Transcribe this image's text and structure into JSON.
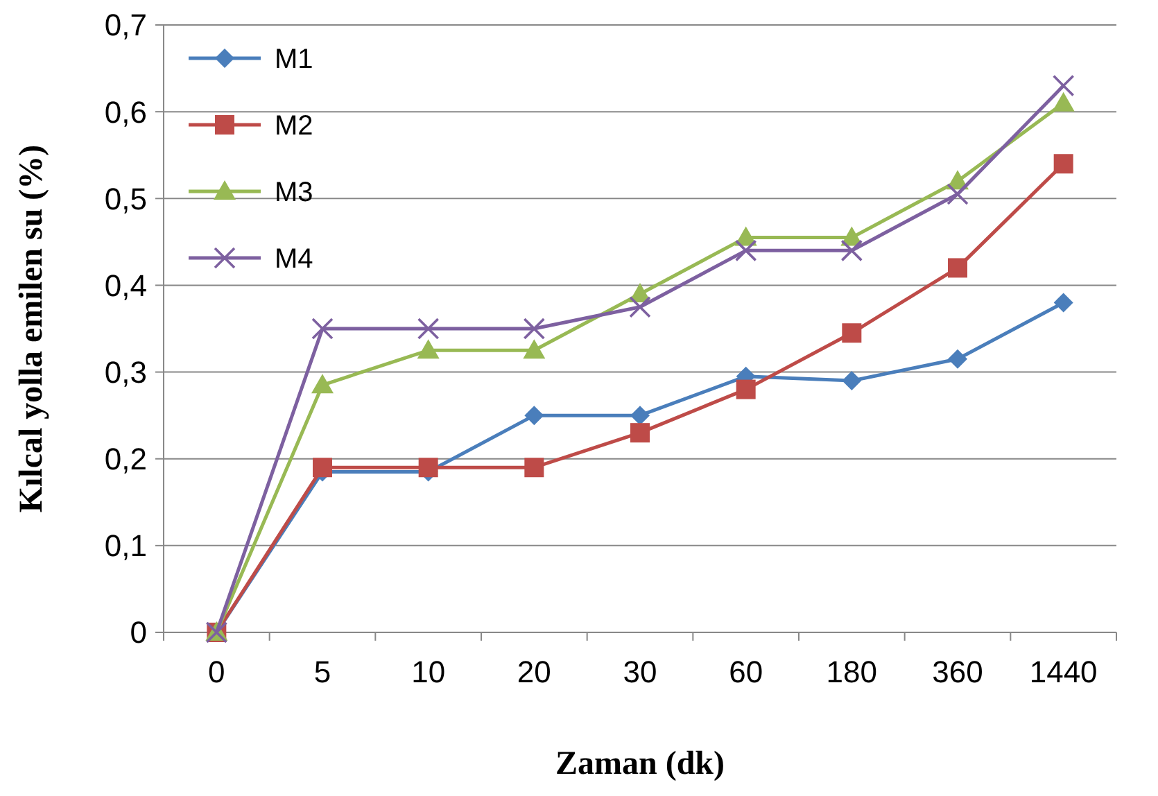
{
  "chart_data": {
    "type": "line",
    "xlabel": "Zaman (dk)",
    "ylabel": "Kılcal yolla emilen su (%)",
    "categories": [
      "0",
      "5",
      "10",
      "20",
      "30",
      "60",
      "180",
      "360",
      "1440"
    ],
    "ylim": [
      0,
      0.7
    ],
    "yticks": [
      {
        "value": 0,
        "label": "0"
      },
      {
        "value": 0.1,
        "label": "0,1"
      },
      {
        "value": 0.2,
        "label": "0,2"
      },
      {
        "value": 0.3,
        "label": "0,3"
      },
      {
        "value": 0.4,
        "label": "0,4"
      },
      {
        "value": 0.5,
        "label": "0,5"
      },
      {
        "value": 0.6,
        "label": "0,6"
      },
      {
        "value": 0.7,
        "label": "0,7"
      }
    ],
    "grid": "y",
    "legend": "top left",
    "line_style": "solid",
    "series": [
      {
        "name": "M1",
        "color": "#4a7ebb",
        "marker": "diamond",
        "values": [
          0,
          0.185,
          0.185,
          0.25,
          0.25,
          0.295,
          0.29,
          0.315,
          0.38
        ]
      },
      {
        "name": "M2",
        "color": "#be4b48",
        "marker": "square",
        "values": [
          0,
          0.19,
          0.19,
          0.19,
          0.23,
          0.28,
          0.345,
          0.42,
          0.54
        ]
      },
      {
        "name": "M3",
        "color": "#98b954",
        "marker": "triangle",
        "values": [
          0,
          0.285,
          0.325,
          0.325,
          0.39,
          0.455,
          0.455,
          0.52,
          0.61
        ]
      },
      {
        "name": "M4",
        "color": "#7d60a0",
        "marker": "cross",
        "values": [
          0,
          0.35,
          0.35,
          0.35,
          0.375,
          0.44,
          0.44,
          0.505,
          0.63
        ]
      }
    ]
  }
}
